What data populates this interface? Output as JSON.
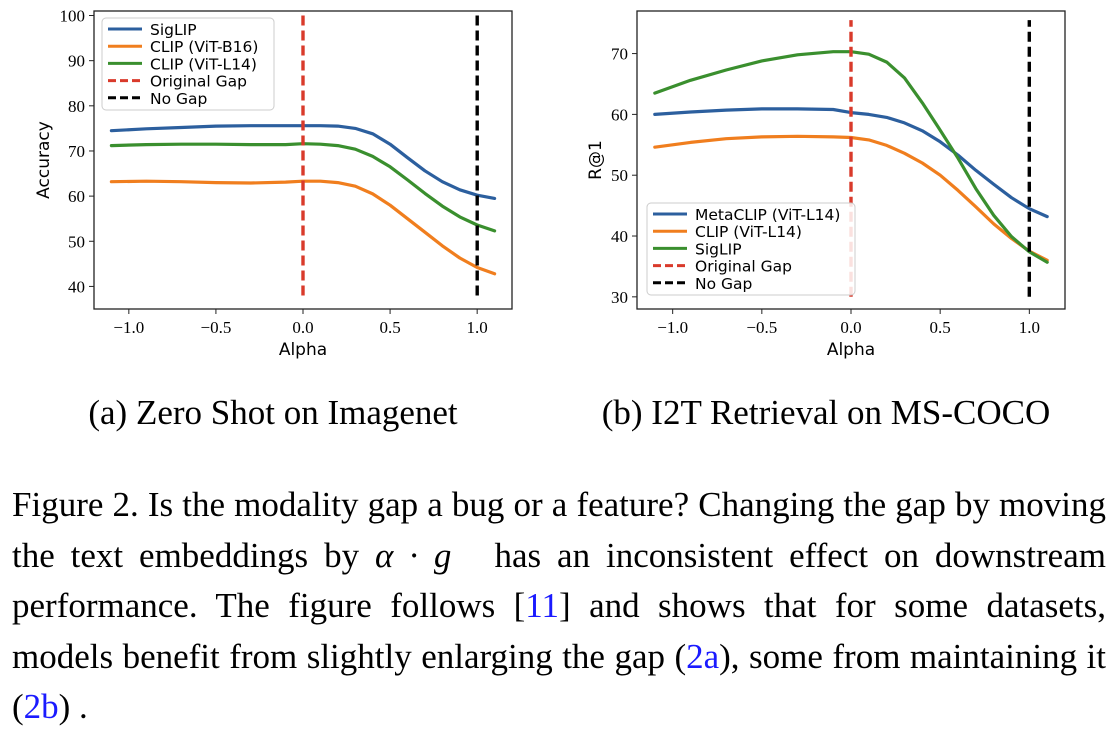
{
  "chart_data": [
    {
      "type": "line",
      "id": "a",
      "xlabel": "Alpha",
      "ylabel": "Accuracy",
      "xlim": [
        -1.2,
        1.2
      ],
      "ylim": [
        35,
        101
      ],
      "xticks": [
        -1.0,
        -0.5,
        0.0,
        0.5,
        1.0
      ],
      "xtick_labels": [
        "−1.0",
        "−0.5",
        "0.0",
        "0.5",
        "1.0"
      ],
      "yticks": [
        40,
        50,
        60,
        70,
        80,
        90,
        100
      ],
      "ytick_labels": [
        "40",
        "50",
        "60",
        "70",
        "80",
        "90",
        "100"
      ],
      "legend_position": "top-left",
      "caption": "(a) Zero Shot on Imagenet",
      "series": [
        {
          "name": "SigLIP",
          "color": "#2c5f9e",
          "x": [
            -1.1,
            -0.9,
            -0.7,
            -0.5,
            -0.3,
            -0.1,
            0.0,
            0.1,
            0.2,
            0.3,
            0.4,
            0.5,
            0.6,
            0.7,
            0.8,
            0.9,
            1.0,
            1.1
          ],
          "y": [
            74.5,
            74.9,
            75.2,
            75.5,
            75.6,
            75.6,
            75.6,
            75.6,
            75.5,
            75.0,
            73.8,
            71.5,
            68.5,
            65.6,
            63.2,
            61.4,
            60.2,
            59.5
          ]
        },
        {
          "name": "CLIP (ViT-B16)",
          "color": "#f07e1e",
          "x": [
            -1.1,
            -0.9,
            -0.7,
            -0.5,
            -0.3,
            -0.1,
            0.0,
            0.1,
            0.2,
            0.3,
            0.4,
            0.5,
            0.6,
            0.7,
            0.8,
            0.9,
            1.0,
            1.1
          ],
          "y": [
            63.2,
            63.3,
            63.2,
            63.0,
            62.9,
            63.1,
            63.3,
            63.3,
            63.0,
            62.2,
            60.5,
            58.0,
            55.0,
            52.0,
            49.0,
            46.3,
            44.2,
            42.8
          ]
        },
        {
          "name": "CLIP (ViT-L14)",
          "color": "#3a8f2e",
          "x": [
            -1.1,
            -0.9,
            -0.7,
            -0.5,
            -0.3,
            -0.1,
            0.0,
            0.1,
            0.2,
            0.3,
            0.4,
            0.5,
            0.6,
            0.7,
            0.8,
            0.9,
            1.0,
            1.1
          ],
          "y": [
            71.2,
            71.4,
            71.5,
            71.5,
            71.4,
            71.4,
            71.6,
            71.5,
            71.2,
            70.4,
            68.8,
            66.5,
            63.6,
            60.6,
            57.8,
            55.4,
            53.6,
            52.3
          ]
        },
        {
          "name": "Original Gap",
          "color": "#d93a2b",
          "dashed": true,
          "x": [
            0.0,
            0.0
          ],
          "y": [
            38,
            100
          ]
        },
        {
          "name": "No Gap",
          "color": "#000000",
          "dashed": true,
          "x": [
            1.0,
            1.0
          ],
          "y": [
            38,
            100
          ]
        }
      ]
    },
    {
      "type": "line",
      "id": "b",
      "xlabel": "Alpha",
      "ylabel": "R@1",
      "xlim": [
        -1.2,
        1.2
      ],
      "ylim": [
        28,
        77
      ],
      "xticks": [
        -1.0,
        -0.5,
        0.0,
        0.5,
        1.0
      ],
      "xtick_labels": [
        "−1.0",
        "−0.5",
        "0.0",
        "0.5",
        "1.0"
      ],
      "yticks": [
        30,
        40,
        50,
        60,
        70
      ],
      "ytick_labels": [
        "30",
        "40",
        "50",
        "60",
        "70"
      ],
      "legend_position": "lower-left",
      "caption": "(b) I2T Retrieval on MS-COCO",
      "series": [
        {
          "name": "MetaCLIP (ViT-L14)",
          "color": "#2c5f9e",
          "x": [
            -1.1,
            -0.9,
            -0.7,
            -0.5,
            -0.3,
            -0.1,
            0.0,
            0.1,
            0.2,
            0.3,
            0.4,
            0.5,
            0.6,
            0.7,
            0.8,
            0.9,
            1.0,
            1.1
          ],
          "y": [
            60.0,
            60.4,
            60.7,
            60.9,
            60.9,
            60.8,
            60.3,
            60.0,
            59.5,
            58.6,
            57.3,
            55.5,
            53.3,
            50.8,
            48.5,
            46.3,
            44.5,
            43.2
          ]
        },
        {
          "name": "CLIP (ViT-L14)",
          "color": "#f07e1e",
          "x": [
            -1.1,
            -0.9,
            -0.7,
            -0.5,
            -0.3,
            -0.1,
            0.0,
            0.1,
            0.2,
            0.3,
            0.4,
            0.5,
            0.6,
            0.7,
            0.8,
            0.9,
            1.0,
            1.1
          ],
          "y": [
            54.6,
            55.4,
            56.0,
            56.3,
            56.4,
            56.3,
            56.2,
            55.8,
            54.9,
            53.6,
            52.0,
            50.0,
            47.5,
            44.8,
            42.0,
            39.6,
            37.5,
            36.0
          ]
        },
        {
          "name": "SigLIP",
          "color": "#3a8f2e",
          "x": [
            -1.1,
            -0.9,
            -0.7,
            -0.5,
            -0.3,
            -0.1,
            0.0,
            0.1,
            0.2,
            0.3,
            0.4,
            0.5,
            0.6,
            0.7,
            0.8,
            0.9,
            1.0,
            1.1
          ],
          "y": [
            63.5,
            65.6,
            67.3,
            68.8,
            69.8,
            70.3,
            70.3,
            69.9,
            68.6,
            66.0,
            61.9,
            57.4,
            52.8,
            47.8,
            43.4,
            39.9,
            37.4,
            35.7
          ]
        },
        {
          "name": "Original Gap",
          "color": "#d93a2b",
          "dashed": true,
          "x": [
            0.0,
            0.0
          ],
          "y": [
            30,
            75.5
          ]
        },
        {
          "name": "No Gap",
          "color": "#000000",
          "dashed": true,
          "x": [
            1.0,
            1.0
          ],
          "y": [
            30,
            75.5
          ]
        }
      ]
    }
  ],
  "figure_caption": {
    "prefix": "Figure 2. Is the modality gap a bug or a feature? Changing the gap by moving the text embeddings by ",
    "math": "α · g⃗",
    "middle1": " has an inconsistent effect on downstream performance. The figure follows [",
    "ref1": "11",
    "middle2": "] and shows that for some datasets, models benefit from slightly enlarging the gap (",
    "ref2": "2a",
    "middle3": "), some from maintaining it (",
    "ref3": "2b",
    "suffix": ") ."
  }
}
